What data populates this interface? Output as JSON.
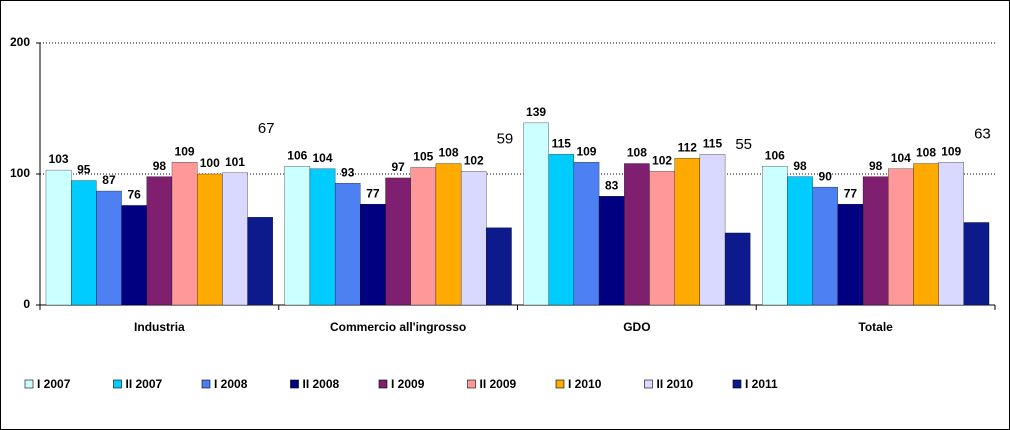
{
  "chart_data": {
    "type": "bar",
    "categories": [
      "Industria",
      "Commercio all'ingrosso",
      "GDO",
      "Totale"
    ],
    "series": [
      {
        "name": "I 2007",
        "color": "#ccffff",
        "values": [
          103,
          106,
          139,
          106
        ]
      },
      {
        "name": "II 2007",
        "color": "#00ccff",
        "values": [
          95,
          104,
          115,
          98
        ]
      },
      {
        "name": "I 2008",
        "color": "#4d80f2",
        "values": [
          87,
          93,
          109,
          90
        ]
      },
      {
        "name": "II 2008",
        "color": "#000080",
        "values": [
          76,
          77,
          83,
          77
        ]
      },
      {
        "name": "I 2009",
        "color": "#7f1f70",
        "values": [
          98,
          97,
          108,
          98
        ]
      },
      {
        "name": "II 2009",
        "color": "#ff9999",
        "values": [
          109,
          105,
          102,
          104
        ]
      },
      {
        "name": "I 2010",
        "color": "#ffaa00",
        "values": [
          100,
          108,
          112,
          108
        ]
      },
      {
        "name": "II 2010",
        "color": "#d9d9ff",
        "values": [
          101,
          102,
          115,
          109
        ]
      },
      {
        "name": "I 2011",
        "color": "#0d1a8c",
        "values": [
          67,
          59,
          55,
          63
        ]
      }
    ],
    "ylim": [
      0,
      200
    ],
    "yticks": [
      0,
      100,
      200
    ],
    "grid": true,
    "legend": "bottom"
  }
}
